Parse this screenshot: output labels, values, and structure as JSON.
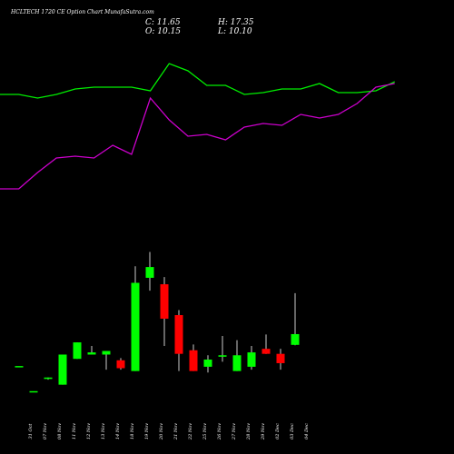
{
  "title": "HCLTECH 1720 CE Option  Chart MunafaSutra.com",
  "ohlc": {
    "close": "C: 11.65",
    "high": "H: 17.35",
    "open": "O: 10.15",
    "low": "L: 10.10"
  },
  "colors": {
    "background": "#000000",
    "up": "#00ff00",
    "down": "#ff0000",
    "ma_fast": "#00ee00",
    "ma_slow": "#cc00cc",
    "wick": "#ffffff"
  },
  "chart_data": [
    {
      "type": "line",
      "series": [
        {
          "x": [
            0,
            1,
            2,
            3,
            4,
            5,
            6,
            7,
            8,
            9,
            10,
            11,
            12,
            13,
            14,
            15,
            16,
            17,
            18,
            19,
            20,
            21
          ],
          "values": [
            61,
            61,
            63,
            61,
            58,
            57,
            57,
            57,
            59,
            44,
            48,
            56,
            56,
            61,
            60,
            58,
            58,
            55,
            60,
            60,
            59,
            54
          ]
        },
        {
          "x": [
            0,
            1,
            2,
            3,
            4,
            5,
            6,
            7,
            8,
            9,
            10,
            11,
            12,
            13,
            14,
            15,
            16,
            17,
            18,
            19,
            20,
            21
          ],
          "values": [
            113,
            113,
            104,
            96,
            95,
            96,
            89,
            94,
            63,
            75,
            84,
            83,
            86,
            79,
            77,
            78,
            72,
            74,
            72,
            66,
            57,
            55
          ]
        }
      ]
    },
    {
      "type": "candlestick",
      "categories": [
        "31 Oct",
        "07 Nov",
        "08 Nov",
        "11 Nov",
        "12 Nov",
        "13 Nov",
        "14 Nov",
        "18 Nov",
        "19 Nov",
        "20 Nov",
        "21 Nov",
        "22 Nov",
        "25 Nov",
        "26 Nov",
        "27 Nov",
        "28 Nov",
        "29 Nov",
        "02 Dec",
        "03 Dec",
        "04 Dec"
      ],
      "open": [
        7.2,
        3.7,
        5.4,
        4.6,
        8.2,
        8.8,
        8.8,
        8.0,
        6.5,
        19.5,
        18.6,
        14.3,
        9.4,
        7.1,
        8.5,
        6.5,
        7.1,
        9.6,
        8.9,
        10.15
      ],
      "high": [
        7.2,
        3.7,
        5.6,
        8.8,
        10.5,
        10.0,
        9.3,
        8.3,
        21.1,
        23.1,
        19.6,
        15.0,
        10.2,
        8.7,
        11.4,
        10.8,
        10.0,
        11.6,
        9.6,
        17.35
      ],
      "low": [
        7.2,
        3.7,
        5.3,
        4.6,
        8.2,
        8.8,
        6.7,
        6.7,
        6.5,
        17.7,
        10.0,
        6.5,
        6.5,
        6.3,
        7.8,
        6.5,
        6.7,
        8.9,
        6.7,
        10.1
      ],
      "close": [
        7.2,
        3.7,
        5.6,
        8.8,
        10.5,
        9.1,
        9.3,
        6.9,
        18.8,
        21.0,
        13.8,
        8.9,
        6.5,
        8.1,
        8.7,
        8.7,
        9.1,
        8.9,
        7.6,
        11.65
      ]
    }
  ]
}
